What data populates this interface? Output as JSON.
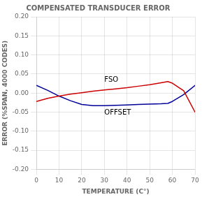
{
  "chart_data": {
    "type": "line",
    "title": "COMPENSATED TRANSDUCER ERROR",
    "xlabel": "TEMPERATURE (C°)",
    "ylabel": "ERROR (%SPAN, 4000 CODES)",
    "x": [
      0,
      5,
      10,
      15,
      20,
      25,
      30,
      35,
      40,
      45,
      50,
      55,
      58,
      60,
      65,
      70
    ],
    "series": [
      {
        "color": "#CC0000",
        "values": [
          -0.022,
          -0.014,
          -0.008,
          -0.003,
          0.001,
          0.005,
          0.008,
          0.011,
          0.014,
          0.018,
          0.022,
          0.027,
          0.03,
          0.026,
          0.006,
          -0.05
        ]
      },
      {
        "color": "#000099",
        "values": [
          0.02,
          0.007,
          -0.008,
          -0.02,
          -0.03,
          -0.033,
          -0.033,
          -0.032,
          -0.031,
          -0.03,
          -0.029,
          -0.028,
          -0.027,
          -0.022,
          -0.004,
          0.02
        ]
      }
    ],
    "annotations": [
      {
        "text": "FSO",
        "x": 30,
        "y": 0.03
      },
      {
        "text": "OFFSET",
        "x": 30,
        "y": -0.057
      }
    ],
    "xlim": [
      0,
      70
    ],
    "ylim": [
      -0.2,
      0.2
    ],
    "xticks": [
      0,
      10,
      20,
      30,
      40,
      50,
      60,
      70
    ],
    "yticks": [
      {
        "value": -0.2,
        "label": "-0.20"
      },
      -0.15,
      {
        "value": -0.1,
        "label": "-0.10"
      },
      -0.05,
      {
        "value": 0,
        "label": "0.00"
      },
      0.05,
      {
        "value": 0.1,
        "label": "0.10"
      },
      0.15,
      {
        "value": 0.2,
        "label": "0.20"
      }
    ],
    "grid": true
  }
}
